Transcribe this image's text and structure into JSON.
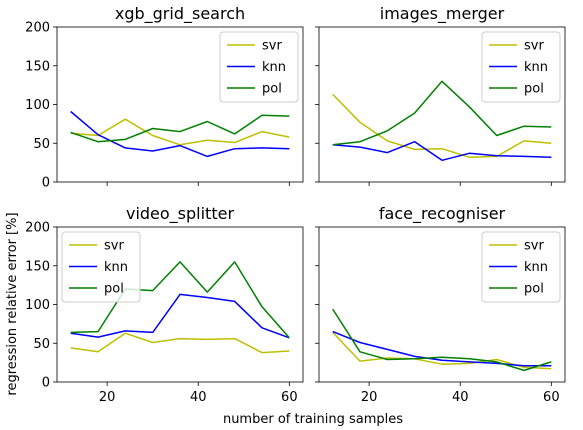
{
  "figure": {
    "xlabel": "number of training samples",
    "ylabel": "regression relative error [%]"
  },
  "colors": {
    "svr": "#bfbf00",
    "knn": "#0000ff",
    "pol": "#008000"
  },
  "chart_data": [
    {
      "type": "line",
      "title": "xgb_grid_search",
      "x": [
        12,
        18,
        24,
        30,
        36,
        42,
        48,
        54,
        60
      ],
      "xlim": [
        9,
        63
      ],
      "ylim": [
        0,
        200
      ],
      "xticks": [
        20,
        40,
        60
      ],
      "yticks": [
        0,
        50,
        100,
        150,
        200
      ],
      "legend": "top-right",
      "series": [
        {
          "name": "svr",
          "values": [
            63,
            60,
            81,
            60,
            48,
            54,
            51,
            65,
            58
          ]
        },
        {
          "name": "knn",
          "values": [
            91,
            61,
            44,
            40,
            47,
            33,
            43,
            44,
            43
          ]
        },
        {
          "name": "pol",
          "values": [
            64,
            52,
            55,
            69,
            65,
            78,
            62,
            86,
            85
          ]
        }
      ]
    },
    {
      "type": "line",
      "title": "images_merger",
      "x": [
        12,
        18,
        24,
        30,
        36,
        42,
        48,
        54,
        60
      ],
      "xlim": [
        9,
        63
      ],
      "ylim": [
        0,
        200
      ],
      "xticks": [
        20,
        40,
        60
      ],
      "yticks": [
        0,
        50,
        100,
        150,
        200
      ],
      "legend": "top-right",
      "series": [
        {
          "name": "svr",
          "values": [
            113,
            77,
            53,
            42,
            43,
            32,
            33,
            53,
            50
          ]
        },
        {
          "name": "knn",
          "values": [
            48,
            45,
            38,
            52,
            28,
            37,
            34,
            33,
            32
          ]
        },
        {
          "name": "pol",
          "values": [
            48,
            52,
            66,
            89,
            130,
            97,
            60,
            72,
            71
          ]
        }
      ]
    },
    {
      "type": "line",
      "title": "video_splitter",
      "x": [
        12,
        18,
        24,
        30,
        36,
        42,
        48,
        54,
        60
      ],
      "xlim": [
        9,
        63
      ],
      "ylim": [
        0,
        200
      ],
      "xticks": [
        20,
        40,
        60
      ],
      "yticks": [
        0,
        50,
        100,
        150,
        200
      ],
      "legend": "top-left",
      "series": [
        {
          "name": "svr",
          "values": [
            44,
            39,
            63,
            51,
            56,
            55,
            56,
            38,
            40
          ]
        },
        {
          "name": "knn",
          "values": [
            63,
            58,
            66,
            64,
            113,
            109,
            104,
            70,
            57
          ]
        },
        {
          "name": "pol",
          "values": [
            64,
            65,
            120,
            118,
            155,
            116,
            155,
            97,
            57
          ]
        }
      ]
    },
    {
      "type": "line",
      "title": "face_recogniser",
      "x": [
        12,
        18,
        24,
        30,
        36,
        42,
        48,
        54,
        60
      ],
      "xlim": [
        9,
        63
      ],
      "ylim": [
        0,
        200
      ],
      "xticks": [
        20,
        40,
        60
      ],
      "yticks": [
        0,
        50,
        100,
        150,
        200
      ],
      "legend": "top-right",
      "series": [
        {
          "name": "svr",
          "values": [
            64,
            27,
            31,
            30,
            23,
            24,
            29,
            19,
            17
          ]
        },
        {
          "name": "knn",
          "values": [
            65,
            51,
            42,
            33,
            28,
            26,
            24,
            21,
            21
          ]
        },
        {
          "name": "pol",
          "values": [
            94,
            39,
            29,
            30,
            32,
            30,
            26,
            15,
            26
          ]
        }
      ]
    }
  ]
}
